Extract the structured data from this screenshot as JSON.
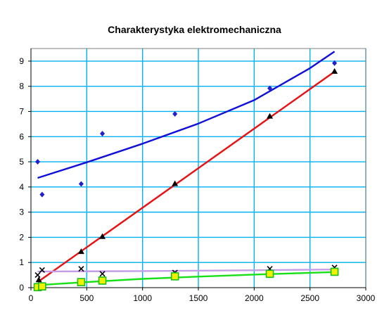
{
  "chart_data": {
    "type": "scatter",
    "title": "Charakterystyka elektromechaniczna",
    "xlabel": "",
    "ylabel": "",
    "xlim": [
      0,
      3000
    ],
    "ylim": [
      0,
      9.5
    ],
    "xticks": [
      0,
      500,
      1000,
      1500,
      2000,
      2500,
      3000
    ],
    "yticks": [
      0,
      1,
      2,
      3,
      4,
      5,
      6,
      7,
      8,
      9
    ],
    "grid": true,
    "grid_color": "#00b0f0",
    "legend": "none",
    "series": [
      {
        "marker": "diamond",
        "color": "#1f1fd0",
        "x": [
          60,
          100,
          450,
          640,
          1290,
          2140,
          2720
        ],
        "y": [
          5.0,
          3.7,
          4.12,
          6.12,
          6.9,
          7.92,
          8.92
        ],
        "trend": {
          "type": "curve",
          "color": "#1010d8",
          "x": [
            60,
            500,
            1000,
            1500,
            2000,
            2500,
            2720
          ],
          "y": [
            4.36,
            4.98,
            5.72,
            6.52,
            7.45,
            8.72,
            9.38
          ]
        }
      },
      {
        "marker": "triangle",
        "color": "#000000",
        "x": [
          70,
          450,
          640,
          1290,
          2140,
          2720
        ],
        "y": [
          0.3,
          1.42,
          2.02,
          4.12,
          6.8,
          8.58
        ],
        "trend": {
          "type": "line",
          "color": "#e81010",
          "x": [
            60,
            2720
          ],
          "y": [
            0.22,
            8.58
          ]
        }
      },
      {
        "marker": "x",
        "color": "#000000",
        "x": [
          60,
          100,
          450,
          640,
          1290,
          2140,
          2720
        ],
        "y": [
          0.5,
          0.7,
          0.75,
          0.55,
          0.6,
          0.75,
          0.8
        ],
        "trend": {
          "type": "curve",
          "color": "#c49ce8",
          "x": [
            60,
            1000,
            2000,
            2720
          ],
          "y": [
            0.64,
            0.66,
            0.69,
            0.72
          ]
        }
      },
      {
        "marker": "square",
        "color": "#f0f000",
        "x": [
          60,
          100,
          450,
          640,
          1290,
          2140,
          2720
        ],
        "y": [
          0.02,
          0.05,
          0.22,
          0.28,
          0.45,
          0.55,
          0.63
        ],
        "trend": {
          "type": "curve",
          "color": "#18e018",
          "x": [
            60,
            500,
            1000,
            1500,
            2000,
            2720
          ],
          "y": [
            0.1,
            0.22,
            0.35,
            0.44,
            0.52,
            0.62
          ]
        }
      }
    ]
  }
}
